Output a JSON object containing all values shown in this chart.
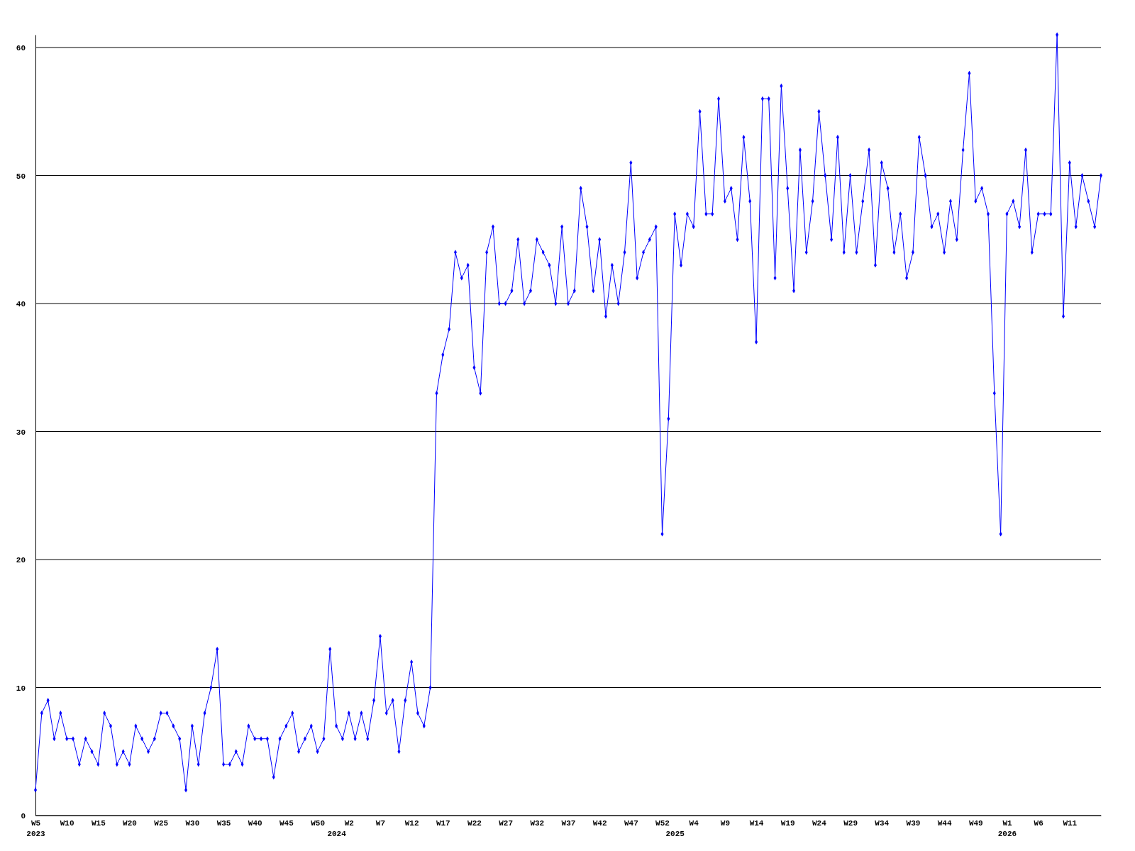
{
  "chart_data": {
    "type": "line",
    "categories": [
      "W5\n2023",
      null,
      null,
      null,
      null,
      "W10",
      null,
      null,
      null,
      null,
      "W15",
      null,
      null,
      null,
      null,
      "W20",
      null,
      null,
      null,
      null,
      "W25",
      null,
      null,
      null,
      null,
      "W30",
      null,
      null,
      null,
      null,
      "W35",
      null,
      null,
      null,
      null,
      "W40",
      null,
      null,
      null,
      null,
      "W45",
      null,
      null,
      null,
      null,
      "W50",
      null,
      null,
      "\n2024",
      null,
      "W2",
      null,
      null,
      null,
      null,
      "W7",
      null,
      null,
      null,
      null,
      "W12",
      null,
      null,
      null,
      null,
      "W17",
      null,
      null,
      null,
      null,
      "W22",
      null,
      null,
      null,
      null,
      "W27",
      null,
      null,
      null,
      null,
      "W32",
      null,
      null,
      null,
      null,
      "W37",
      null,
      null,
      null,
      null,
      "W42",
      null,
      null,
      null,
      null,
      "W47",
      null,
      null,
      null,
      null,
      "W52",
      null,
      "\n2025",
      null,
      null,
      "W4",
      null,
      null,
      null,
      null,
      "W9",
      null,
      null,
      null,
      null,
      "W14",
      null,
      null,
      null,
      null,
      "W19",
      null,
      null,
      null,
      null,
      "W24",
      null,
      null,
      null,
      null,
      "W29",
      null,
      null,
      null,
      null,
      "W34",
      null,
      null,
      null,
      null,
      "W39",
      null,
      null,
      null,
      null,
      "W44",
      null,
      null,
      null,
      null,
      "W49",
      null,
      null,
      null,
      null,
      "W1\n2026",
      null,
      null,
      null,
      null,
      "W6",
      null,
      null,
      null,
      null,
      "W11",
      null,
      null,
      null,
      null,
      null
    ],
    "series": [
      {
        "color": "#0000ff",
        "values": [
          2,
          8,
          9,
          6,
          8,
          6,
          6,
          4,
          6,
          5,
          4,
          8,
          7,
          4,
          5,
          4,
          7,
          6,
          5,
          6,
          8,
          8,
          7,
          6,
          2,
          7,
          4,
          8,
          10,
          13,
          4,
          4,
          5,
          4,
          7,
          6,
          6,
          6,
          3,
          6,
          7,
          8,
          5,
          6,
          7,
          5,
          6,
          13,
          7,
          6,
          8,
          6,
          8,
          6,
          9,
          14,
          8,
          9,
          5,
          9,
          12,
          8,
          7,
          10,
          33,
          36,
          38,
          44,
          42,
          43,
          35,
          33,
          44,
          46,
          40,
          40,
          41,
          45,
          40,
          41,
          45,
          44,
          43,
          40,
          46,
          40,
          41,
          49,
          46,
          41,
          45,
          39,
          43,
          40,
          44,
          51,
          42,
          44,
          45,
          46,
          22,
          31,
          47,
          43,
          47,
          46,
          55,
          47,
          47,
          56,
          48,
          49,
          45,
          53,
          48,
          37,
          56,
          56,
          42,
          57,
          49,
          41,
          52,
          44,
          48,
          55,
          50,
          45,
          53,
          44,
          50,
          44,
          48,
          52,
          43,
          51,
          49,
          44,
          47,
          42,
          44,
          53,
          50,
          46,
          47,
          44,
          48,
          45,
          52,
          58,
          48,
          49,
          47,
          33,
          22,
          47,
          48,
          46,
          52,
          44,
          47,
          47,
          47,
          61,
          39,
          51,
          46,
          50,
          48,
          46,
          50
        ]
      }
    ],
    "ylim": [
      0,
      61
    ],
    "yticks": [
      0,
      10,
      20,
      30,
      40,
      50,
      60
    ],
    "grid": "y",
    "marker": "diamond",
    "line_style": "solid"
  }
}
